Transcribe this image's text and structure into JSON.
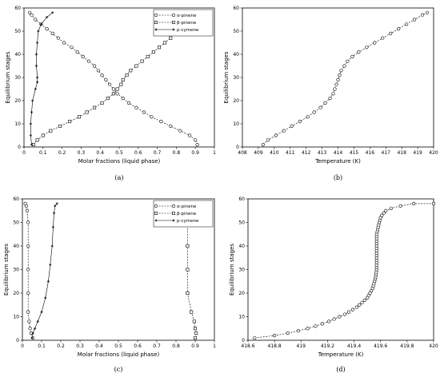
{
  "chart_data": [
    {
      "type": "line",
      "panel_label": "(a)",
      "xlabel": "Molar fractions (liquid phase)",
      "ylabel": "Equilibrium stages",
      "xlim": [
        0,
        1
      ],
      "ylim": [
        0,
        60
      ],
      "xticks": [
        "0",
        "0.1",
        "0.2",
        "0.3",
        "0.4",
        "0.5",
        "0.6",
        "0.7",
        "0.8",
        "0.9",
        "1"
      ],
      "yticks": [
        "0",
        "10",
        "20",
        "30",
        "40",
        "50",
        "60"
      ],
      "legend_position": "top-right",
      "series": [
        {
          "name": "α-pinene",
          "marker": "circle",
          "points": [
            [
              0.91,
              1
            ],
            [
              0.9,
              3
            ],
            [
              0.87,
              5
            ],
            [
              0.82,
              7
            ],
            [
              0.77,
              9
            ],
            [
              0.72,
              11
            ],
            [
              0.67,
              13
            ],
            [
              0.63,
              15
            ],
            [
              0.59,
              17
            ],
            [
              0.55,
              19
            ],
            [
              0.52,
              21
            ],
            [
              0.49,
              23
            ],
            [
              0.47,
              25
            ],
            [
              0.45,
              27
            ],
            [
              0.43,
              29
            ],
            [
              0.41,
              31
            ],
            [
              0.39,
              33
            ],
            [
              0.37,
              35
            ],
            [
              0.34,
              37
            ],
            [
              0.31,
              39
            ],
            [
              0.28,
              41
            ],
            [
              0.25,
              43
            ],
            [
              0.21,
              45
            ],
            [
              0.18,
              47
            ],
            [
              0.15,
              49
            ],
            [
              0.12,
              51
            ],
            [
              0.09,
              53
            ],
            [
              0.06,
              55
            ],
            [
              0.04,
              57
            ],
            [
              0.03,
              58
            ]
          ]
        },
        {
          "name": "β-pinene",
          "marker": "square",
          "points": [
            [
              0.05,
              1
            ],
            [
              0.07,
              3
            ],
            [
              0.1,
              5
            ],
            [
              0.14,
              7
            ],
            [
              0.19,
              9
            ],
            [
              0.24,
              11
            ],
            [
              0.29,
              13
            ],
            [
              0.33,
              15
            ],
            [
              0.37,
              17
            ],
            [
              0.41,
              19
            ],
            [
              0.44,
              21
            ],
            [
              0.47,
              23
            ],
            [
              0.49,
              25
            ],
            [
              0.51,
              27
            ],
            [
              0.52,
              29
            ],
            [
              0.54,
              31
            ],
            [
              0.56,
              33
            ],
            [
              0.59,
              35
            ],
            [
              0.62,
              37
            ],
            [
              0.65,
              39
            ],
            [
              0.68,
              41
            ],
            [
              0.71,
              43
            ],
            [
              0.74,
              45
            ],
            [
              0.77,
              47
            ],
            [
              0.79,
              49
            ],
            [
              0.81,
              51
            ],
            [
              0.82,
              53
            ],
            [
              0.83,
              55
            ],
            [
              0.84,
              57
            ],
            [
              0.835,
              58
            ]
          ]
        },
        {
          "name": "p-cymene",
          "marker": "star",
          "points": [
            [
              0.04,
              1
            ],
            [
              0.035,
              5
            ],
            [
              0.035,
              10
            ],
            [
              0.04,
              15
            ],
            [
              0.045,
              20
            ],
            [
              0.06,
              25
            ],
            [
              0.07,
              28
            ],
            [
              0.07,
              30
            ],
            [
              0.065,
              35
            ],
            [
              0.065,
              40
            ],
            [
              0.07,
              45
            ],
            [
              0.075,
              50
            ],
            [
              0.09,
              53
            ],
            [
              0.12,
              56
            ],
            [
              0.15,
              58
            ]
          ]
        }
      ]
    },
    {
      "type": "line",
      "panel_label": "(b)",
      "xlabel": "Temperature (K)",
      "ylabel": "Equilibrium stages",
      "xlim": [
        408,
        420
      ],
      "ylim": [
        0,
        60
      ],
      "xticks": [
        "408",
        "409",
        "410",
        "411",
        "412",
        "413",
        "414",
        "415",
        "416",
        "417",
        "418",
        "419",
        "420"
      ],
      "yticks": [
        "0",
        "10",
        "20",
        "30",
        "40",
        "50",
        "60"
      ],
      "series": [
        {
          "marker": "circle",
          "points": [
            [
              409.3,
              1
            ],
            [
              409.6,
              3
            ],
            [
              410.1,
              5
            ],
            [
              410.6,
              7
            ],
            [
              411.1,
              9
            ],
            [
              411.6,
              11
            ],
            [
              412.1,
              13
            ],
            [
              412.5,
              15
            ],
            [
              412.9,
              17
            ],
            [
              413.2,
              19
            ],
            [
              413.5,
              21
            ],
            [
              413.7,
              23
            ],
            [
              413.8,
              25
            ],
            [
              413.9,
              27
            ],
            [
              414,
              29
            ],
            [
              414.1,
              31
            ],
            [
              414.2,
              33
            ],
            [
              414.4,
              35
            ],
            [
              414.6,
              37
            ],
            [
              414.9,
              39
            ],
            [
              415.3,
              41
            ],
            [
              415.8,
              43
            ],
            [
              416.3,
              45
            ],
            [
              416.8,
              47
            ],
            [
              417.3,
              49
            ],
            [
              417.8,
              51
            ],
            [
              418.3,
              53
            ],
            [
              418.8,
              55
            ],
            [
              419.3,
              57
            ],
            [
              419.6,
              58
            ]
          ]
        }
      ]
    },
    {
      "type": "line",
      "panel_label": "(c)",
      "xlabel": "Molar fractions (liquid phase)",
      "ylabel": "Equilibrium stages",
      "xlim": [
        0,
        1
      ],
      "ylim": [
        0,
        60
      ],
      "xticks": [
        "0",
        "0.1",
        "0.2",
        "0.3",
        "0.4",
        "0.5",
        "0.6",
        "0.7",
        "0.8",
        "0.9",
        "1"
      ],
      "yticks": [
        "0",
        "10",
        "20",
        "30",
        "40",
        "50",
        "60"
      ],
      "legend_position": "top-right",
      "series": [
        {
          "name": "α-pinene",
          "marker": "circle",
          "points": [
            [
              0.055,
              1
            ],
            [
              0.045,
              3
            ],
            [
              0.04,
              5
            ],
            [
              0.035,
              8
            ],
            [
              0.03,
              12
            ],
            [
              0.03,
              20
            ],
            [
              0.03,
              30
            ],
            [
              0.03,
              40
            ],
            [
              0.03,
              50
            ],
            [
              0.025,
              55
            ],
            [
              0.02,
              57
            ],
            [
              0.015,
              58
            ]
          ]
        },
        {
          "name": "β-pinene",
          "marker": "square",
          "points": [
            [
              0.9,
              1
            ],
            [
              0.905,
              3
            ],
            [
              0.9,
              5
            ],
            [
              0.895,
              8
            ],
            [
              0.88,
              12
            ],
            [
              0.86,
              20
            ],
            [
              0.86,
              30
            ],
            [
              0.86,
              40
            ],
            [
              0.86,
              50
            ],
            [
              0.855,
              55
            ],
            [
              0.845,
              57
            ],
            [
              0.83,
              58
            ]
          ]
        },
        {
          "name": "p-cymene",
          "marker": "star",
          "points": [
            [
              0.05,
              1
            ],
            [
              0.055,
              3
            ],
            [
              0.065,
              5
            ],
            [
              0.08,
              8
            ],
            [
              0.1,
              12
            ],
            [
              0.12,
              18
            ],
            [
              0.135,
              25
            ],
            [
              0.145,
              32
            ],
            [
              0.155,
              40
            ],
            [
              0.16,
              48
            ],
            [
              0.165,
              54
            ],
            [
              0.17,
              57
            ],
            [
              0.18,
              58
            ]
          ]
        }
      ]
    },
    {
      "type": "line",
      "panel_label": "(d)",
      "xlabel": "Temperature (K)",
      "ylabel": "Equilibrium stages",
      "xlim": [
        418.6,
        420
      ],
      "ylim": [
        0,
        60
      ],
      "xticks": [
        "418.6",
        "418.8",
        "419",
        "419.2",
        "419.4",
        "419.6",
        "419.8",
        "420"
      ],
      "yticks": [
        "0",
        "10",
        "20",
        "30",
        "40",
        "50",
        "60"
      ],
      "series": [
        {
          "marker": "circle",
          "points": [
            [
              418.65,
              1
            ],
            [
              418.8,
              2
            ],
            [
              418.9,
              3
            ],
            [
              418.98,
              4
            ],
            [
              419.05,
              5
            ],
            [
              419.11,
              6
            ],
            [
              419.16,
              7
            ],
            [
              419.21,
              8
            ],
            [
              419.25,
              9
            ],
            [
              419.29,
              10
            ],
            [
              419.33,
              11
            ],
            [
              419.36,
              12
            ],
            [
              419.39,
              13
            ],
            [
              419.42,
              14
            ],
            [
              419.44,
              15
            ],
            [
              419.46,
              16
            ],
            [
              419.48,
              17
            ],
            [
              419.5,
              18
            ],
            [
              419.51,
              19
            ],
            [
              419.52,
              20
            ],
            [
              419.53,
              21
            ],
            [
              419.54,
              22
            ],
            [
              419.545,
              23
            ],
            [
              419.55,
              24
            ],
            [
              419.555,
              25
            ],
            [
              419.56,
              26
            ],
            [
              419.563,
              27
            ],
            [
              419.566,
              28
            ],
            [
              419.568,
              29
            ],
            [
              419.57,
              30
            ],
            [
              419.57,
              31
            ],
            [
              419.57,
              32
            ],
            [
              419.57,
              33
            ],
            [
              419.57,
              34
            ],
            [
              419.57,
              35
            ],
            [
              419.57,
              36
            ],
            [
              419.57,
              37
            ],
            [
              419.57,
              38
            ],
            [
              419.57,
              39
            ],
            [
              419.57,
              40
            ],
            [
              419.57,
              41
            ],
            [
              419.57,
              42
            ],
            [
              419.57,
              43
            ],
            [
              419.57,
              44
            ],
            [
              419.57,
              45
            ],
            [
              419.575,
              46
            ],
            [
              419.578,
              47
            ],
            [
              419.582,
              48
            ],
            [
              419.586,
              49
            ],
            [
              419.59,
              50
            ],
            [
              419.595,
              51
            ],
            [
              419.6,
              52
            ],
            [
              419.61,
              53
            ],
            [
              419.625,
              54
            ],
            [
              419.64,
              55
            ],
            [
              419.68,
              56
            ],
            [
              419.75,
              57
            ],
            [
              419.85,
              58
            ],
            [
              420,
              58
            ]
          ]
        }
      ]
    }
  ]
}
